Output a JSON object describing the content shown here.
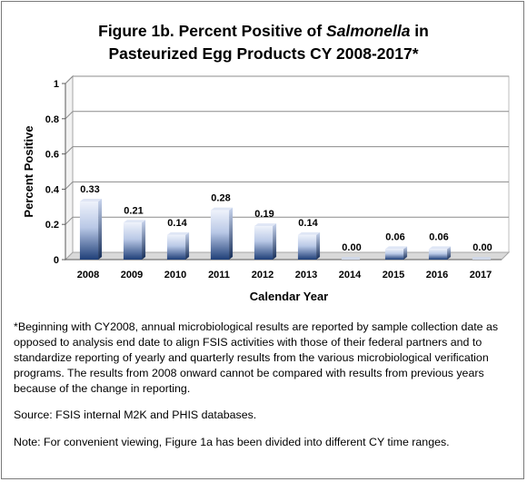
{
  "title": {
    "line1_prefix": "Figure 1b. Percent Positive of ",
    "line1_italic": "Salmonella",
    "line1_suffix": " in",
    "line2": "Pasteurized Egg Products  CY 2008-2017*"
  },
  "chart_data": {
    "type": "bar",
    "categories": [
      "2008",
      "2009",
      "2010",
      "2011",
      "2012",
      "2013",
      "2014",
      "2015",
      "2016",
      "2017"
    ],
    "values": [
      0.33,
      0.21,
      0.14,
      0.28,
      0.19,
      0.14,
      0.0,
      0.06,
      0.06,
      0.0
    ],
    "value_labels": [
      "0.33",
      "0.21",
      "0.14",
      "0.28",
      "0.19",
      "0.14",
      "0.00",
      "0.06",
      "0.06",
      "0.00"
    ],
    "xlabel": "Calendar Year",
    "ylabel": "Percent Positive",
    "ylim": [
      0,
      1
    ],
    "yticks": [
      "0",
      "0.2",
      "0.4",
      "0.6",
      "0.8",
      "1"
    ],
    "grid": true,
    "legend": "none",
    "colors": {
      "bar_top": "#e6ecf8",
      "bar_bottom": "#1f3f78",
      "grid": "#8c8c8c",
      "plot_wall": "#ffffff"
    }
  },
  "notes": {
    "footnote": "*Beginning with CY2008, annual microbiological results are reported by sample collection date as opposed to analysis end date to align FSIS activities with those of their federal partners and to standardize reporting of yearly and quarterly results from the various microbiological verification programs.  The results from 2008 onward cannot be compared with results from previous years because of the change in reporting.",
    "source": "Source: FSIS internal M2K and PHIS databases.",
    "note": "Note: For convenient viewing, Figure 1a has been divided into different CY time ranges."
  }
}
